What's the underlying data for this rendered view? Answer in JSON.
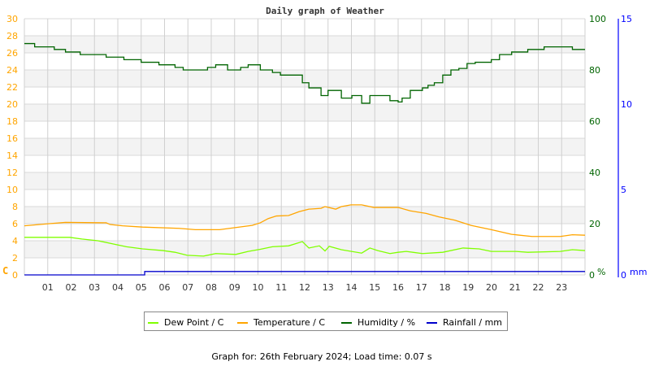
{
  "chart_data": {
    "type": "line",
    "title": "Daily graph of Weather",
    "footer": "Graph for: 26th February 2024; Load time: 0.07 s",
    "x_range": [
      0,
      24
    ],
    "x_ticks": [
      "01",
      "02",
      "03",
      "04",
      "05",
      "06",
      "07",
      "08",
      "09",
      "10",
      "11",
      "12",
      "13",
      "14",
      "15",
      "16",
      "17",
      "18",
      "19",
      "20",
      "21",
      "22",
      "23"
    ],
    "grid": true,
    "legend_placement": "bottom",
    "axes": {
      "left": {
        "unit_label": "C",
        "range": [
          0,
          30
        ],
        "ticks": [
          "0",
          "2",
          "4",
          "6",
          "8",
          "10",
          "12",
          "14",
          "16",
          "18",
          "20",
          "22",
          "24",
          "26",
          "28",
          "30"
        ],
        "color": "#ffa500"
      },
      "right": {
        "unit_label": "%",
        "range": [
          0,
          100
        ],
        "ticks": [
          "0",
          "20",
          "40",
          "60",
          "80",
          "100"
        ],
        "color": "#006400"
      },
      "rain": {
        "unit_label": "mm",
        "range": [
          0,
          15
        ],
        "ticks": [
          "0",
          "5",
          "10",
          "15"
        ],
        "color": "#0000ff"
      }
    },
    "series": [
      {
        "name": "Dew Point / C",
        "axis": "left",
        "color": "#80ff00",
        "step": false,
        "points": [
          [
            0,
            4.4
          ],
          [
            1.94,
            4.4
          ],
          [
            2.46,
            4.2
          ],
          [
            3.15,
            4.0
          ],
          [
            3.85,
            3.6
          ],
          [
            4.37,
            3.3
          ],
          [
            5.06,
            3.05
          ],
          [
            5.93,
            2.85
          ],
          [
            6.45,
            2.65
          ],
          [
            6.97,
            2.3
          ],
          [
            7.67,
            2.2
          ],
          [
            8.19,
            2.5
          ],
          [
            9.05,
            2.4
          ],
          [
            9.58,
            2.75
          ],
          [
            10.1,
            3.0
          ],
          [
            10.62,
            3.3
          ],
          [
            11.31,
            3.4
          ],
          [
            11.9,
            3.9
          ],
          [
            12.18,
            3.15
          ],
          [
            12.63,
            3.4
          ],
          [
            12.87,
            2.8
          ],
          [
            13.05,
            3.35
          ],
          [
            13.57,
            2.95
          ],
          [
            14.44,
            2.55
          ],
          [
            14.79,
            3.15
          ],
          [
            15.13,
            2.85
          ],
          [
            15.65,
            2.5
          ],
          [
            16.0,
            2.65
          ],
          [
            16.35,
            2.75
          ],
          [
            17.04,
            2.5
          ],
          [
            17.91,
            2.65
          ],
          [
            18.78,
            3.15
          ],
          [
            19.47,
            3.05
          ],
          [
            19.99,
            2.75
          ],
          [
            21.03,
            2.75
          ],
          [
            21.55,
            2.65
          ],
          [
            22.94,
            2.75
          ],
          [
            23.46,
            2.95
          ],
          [
            24,
            2.85
          ]
        ]
      },
      {
        "name": "Temperature / C",
        "axis": "left",
        "color": "#ffa500",
        "step": false,
        "points": [
          [
            0,
            5.75
          ],
          [
            1.07,
            6.0
          ],
          [
            1.76,
            6.15
          ],
          [
            3.5,
            6.1
          ],
          [
            3.67,
            5.9
          ],
          [
            4.2,
            5.75
          ],
          [
            5.06,
            5.6
          ],
          [
            6.62,
            5.45
          ],
          [
            7.32,
            5.3
          ],
          [
            8.36,
            5.3
          ],
          [
            9.05,
            5.55
          ],
          [
            9.75,
            5.8
          ],
          [
            10.1,
            6.1
          ],
          [
            10.44,
            6.6
          ],
          [
            10.79,
            6.9
          ],
          [
            11.31,
            6.95
          ],
          [
            11.76,
            7.4
          ],
          [
            12.18,
            7.7
          ],
          [
            12.7,
            7.8
          ],
          [
            12.87,
            8.0
          ],
          [
            13.33,
            7.7
          ],
          [
            13.57,
            8.0
          ],
          [
            13.98,
            8.2
          ],
          [
            14.44,
            8.2
          ],
          [
            14.96,
            7.9
          ],
          [
            16.0,
            7.9
          ],
          [
            16.52,
            7.5
          ],
          [
            17.2,
            7.2
          ],
          [
            17.74,
            6.8
          ],
          [
            18.43,
            6.4
          ],
          [
            19.12,
            5.8
          ],
          [
            19.99,
            5.3
          ],
          [
            20.86,
            4.75
          ],
          [
            21.73,
            4.5
          ],
          [
            22.94,
            4.5
          ],
          [
            23.46,
            4.7
          ],
          [
            24,
            4.65
          ]
        ]
      },
      {
        "name": "Humidity / %",
        "axis": "right",
        "color": "#006400",
        "step": true,
        "points": [
          [
            0,
            90.3
          ],
          [
            0.44,
            89
          ],
          [
            1.28,
            88
          ],
          [
            1.76,
            87
          ],
          [
            2.39,
            86
          ],
          [
            3.5,
            85
          ],
          [
            4.26,
            84
          ],
          [
            5.0,
            83
          ],
          [
            5.76,
            82
          ],
          [
            6.45,
            81
          ],
          [
            6.8,
            80
          ],
          [
            7.84,
            81
          ],
          [
            8.19,
            82
          ],
          [
            8.7,
            80
          ],
          [
            9.26,
            81
          ],
          [
            9.58,
            82
          ],
          [
            10.1,
            80
          ],
          [
            10.62,
            79
          ],
          [
            10.96,
            78
          ],
          [
            11.9,
            75
          ],
          [
            12.18,
            73
          ],
          [
            12.7,
            70
          ],
          [
            13.0,
            72
          ],
          [
            13.57,
            69
          ],
          [
            14.02,
            70
          ],
          [
            14.44,
            67
          ],
          [
            14.79,
            70
          ],
          [
            15.65,
            68
          ],
          [
            16.0,
            67.5
          ],
          [
            16.17,
            69
          ],
          [
            16.52,
            72
          ],
          [
            17.04,
            73
          ],
          [
            17.28,
            74
          ],
          [
            17.55,
            75
          ],
          [
            17.91,
            78
          ],
          [
            18.26,
            80
          ],
          [
            18.6,
            80.6
          ],
          [
            18.95,
            82.5
          ],
          [
            19.3,
            83
          ],
          [
            19.99,
            84
          ],
          [
            20.34,
            86
          ],
          [
            20.86,
            87
          ],
          [
            21.55,
            88
          ],
          [
            22.25,
            89
          ],
          [
            23.46,
            88
          ],
          [
            24,
            88
          ]
        ]
      },
      {
        "name": "Rainfall / mm",
        "axis": "rain",
        "color": "#0000cc",
        "step": true,
        "points": [
          [
            0,
            0
          ],
          [
            5.15,
            0.2
          ],
          [
            24,
            0.2
          ]
        ]
      }
    ]
  }
}
